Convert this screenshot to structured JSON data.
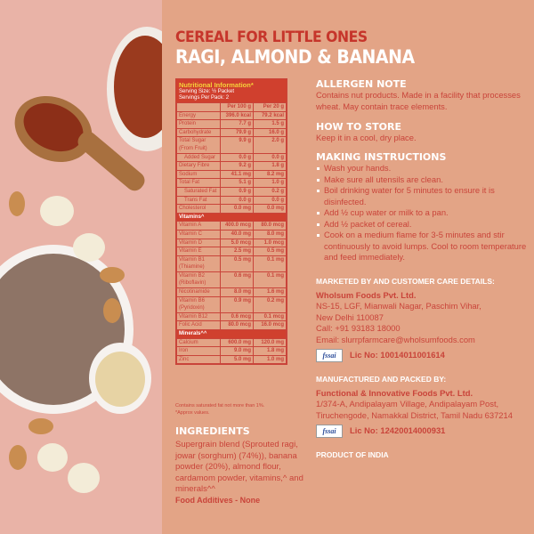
{
  "title": {
    "line1": "CEREAL FOR LITTLE ONES",
    "line2": "RAGI, ALMOND & BANANA"
  },
  "nutrition": {
    "heading": "Nutritional Information*",
    "serving_size": "Serving Size: ½ Packet",
    "servings": "Servings Per Pack: 2",
    "columns": [
      "",
      "Per 100 g",
      "Per 20 g"
    ],
    "rows": [
      [
        "Energy",
        "396.0 kcal",
        "79.2 kcal"
      ],
      [
        "Protein",
        "7.7 g",
        "1.5 g"
      ],
      [
        "Carbohydrate",
        "79.9 g",
        "16.0 g"
      ],
      [
        "Total Sugar (From Fruit)",
        "9.9 g",
        "2.0 g"
      ],
      [
        "  Added Sugar",
        "0.0 g",
        "0.0 g"
      ],
      [
        "Dietary Fibre",
        "9.2 g",
        "1.8 g"
      ],
      [
        "Sodium",
        "41.1 mg",
        "8.2 mg"
      ],
      [
        "Total Fat",
        "5.1 g",
        "1.0 g"
      ],
      [
        "  Saturated Fat",
        "0.9 g",
        "0.2 g"
      ],
      [
        "  Trans Fat",
        "0.0 g",
        "0.0 g"
      ],
      [
        "Cholesterol",
        "0.0 mg",
        "0.0 mg"
      ]
    ],
    "vitamins_heading": "Vitamins^",
    "vitamins": [
      [
        "Vitamin A",
        "400.0 mcg",
        "80.0 mcg"
      ],
      [
        "Vitamin C",
        "40.0 mg",
        "8.0 mg"
      ],
      [
        "Vitamin D",
        "5.0 mcg",
        "1.0 mcg"
      ],
      [
        "Vitamin E",
        "2.5 mg",
        "0.5 mg"
      ],
      [
        "Vitamin B1 (Thiamine)",
        "0.5 mg",
        "0.1 mg"
      ],
      [
        "Vitamin B2 (Riboflavin)",
        "0.6 mg",
        "0.1 mg"
      ],
      [
        "Nicotinamide",
        "8.0 mg",
        "1.6 mg"
      ],
      [
        "Vitamin B6 (Pyridoxin)",
        "0.9 mg",
        "0.2 mg"
      ],
      [
        "Vitamin B12",
        "0.6 mcg",
        "0.1 mcg"
      ],
      [
        "Folic Acid",
        "80.0 mcg",
        "16.0 mcg"
      ]
    ],
    "minerals_heading": "Minerals^^",
    "minerals": [
      [
        "Calcium",
        "600.0 mg",
        "120.0 mg"
      ],
      [
        "Iron",
        "9.0 mg",
        "1.8 mg"
      ],
      [
        "Zinc",
        "5.0 mg",
        "1.0 mg"
      ]
    ],
    "note1": "Contains saturated fat not more than 1%.",
    "note2": "*Approx values."
  },
  "ingredients": {
    "heading": "INGREDIENTS",
    "text": "Supergrain blend (Sprouted ragi, jowar (sorghum) (74%)), banana powder (20%), almond flour, cardamom powder, vitamins,^ and minerals^^",
    "additives": "Food Additives - None"
  },
  "allergen": {
    "heading": "ALLERGEN NOTE",
    "text": "Contains nut products. Made in a facility that processes wheat. May contain trace elements."
  },
  "store": {
    "heading": "HOW TO STORE",
    "text": "Keep it in a cool, dry place."
  },
  "instructions": {
    "heading": "MAKING INSTRUCTIONS",
    "steps": [
      "Wash your hands.",
      "Make sure all utensils are clean.",
      "Boil drinking water for 5 minutes to ensure it is disinfected.",
      "Add ½ cup water or milk to a pan.",
      "Add ½ packet of cereal.",
      "Cook on a medium flame for 3-5 minutes and stir continuously to avoid lumps. Cool to room temperature and feed immediately."
    ]
  },
  "marketed": {
    "heading": "MARKETED BY AND CUSTOMER CARE DETAILS:",
    "company": "Wholsum Foods Pvt. Ltd.",
    "address1": "NS-15, LGF, Mianwali Nagar, Paschim Vihar,",
    "address2": "New Delhi 110087",
    "call": "Call: +91 93183 18000",
    "email": "Email: slurrpfarmcare@wholsumfoods.com",
    "fssai": "fssai",
    "lic": "Lic No: 10014011001614"
  },
  "manufactured": {
    "heading": "MANUFACTURED AND PACKED BY:",
    "company": "Functional & Innovative Foods Pvt. Ltd.",
    "address1": "1/374-A, Andipalayam Village, Andipalayam Post,",
    "address2": "Tiruchengode, Namakkal District, Tamil Nadu 637214",
    "fssai": "fssai",
    "lic": "Lic No: 12420014000931"
  },
  "origin": "PRODUCT OF INDIA",
  "colors": {
    "background": "#e3a486",
    "accent_red": "#c9443a",
    "header_red": "#d0402e",
    "title_yellow": "#f5d03a"
  }
}
